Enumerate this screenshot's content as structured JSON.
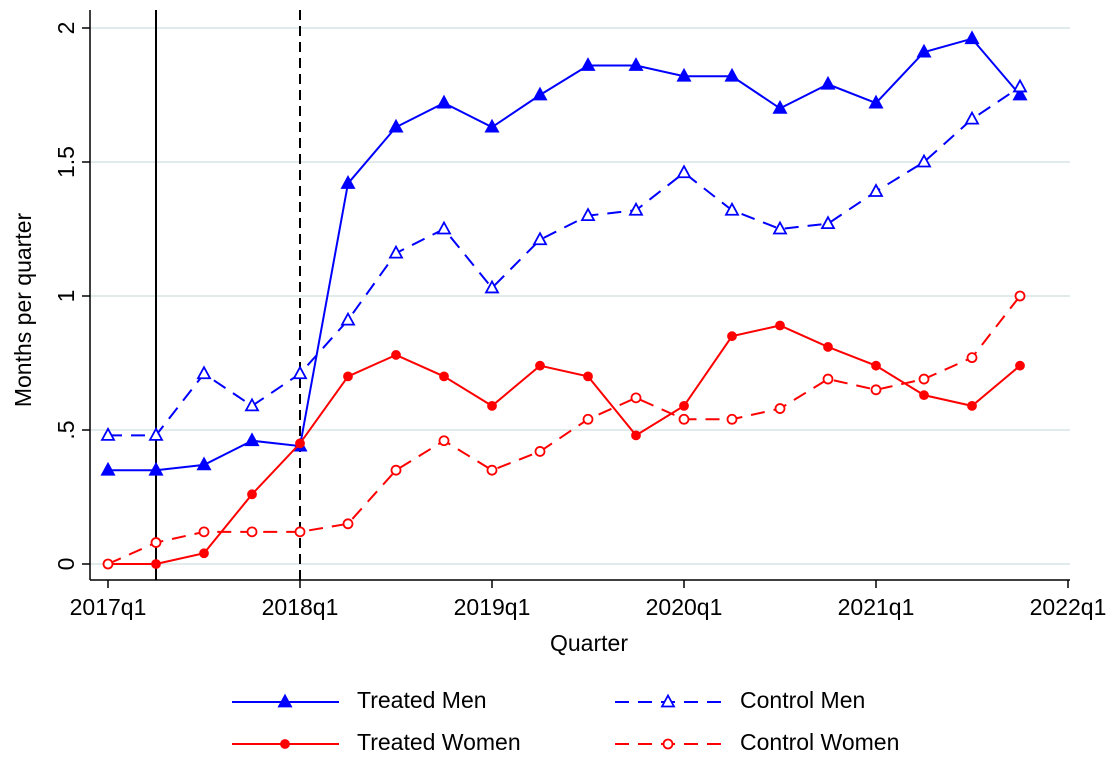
{
  "chart_data": {
    "type": "line",
    "x_label": "Quarter",
    "y_label": "Months per quarter",
    "categories": [
      "2017q1",
      null,
      null,
      null,
      "2018q1",
      null,
      null,
      null,
      "2019q1",
      null,
      null,
      null,
      "2020q1",
      null,
      null,
      null,
      "2021q1",
      null,
      null,
      null,
      "2022q1"
    ],
    "series": [
      {
        "name": "Treated Men",
        "color": "#0000ff",
        "dash": "solid",
        "marker": "triangle",
        "filled": true,
        "values": [
          0.35,
          0.35,
          0.37,
          0.46,
          0.44,
          1.42,
          1.63,
          1.72,
          1.63,
          1.75,
          1.86,
          1.86,
          1.82,
          1.82,
          1.7,
          1.79,
          1.72,
          1.91,
          1.96,
          1.75,
          null
        ]
      },
      {
        "name": "Control Men",
        "color": "#0000ff",
        "dash": "dashed",
        "marker": "triangle",
        "filled": false,
        "values": [
          0.48,
          0.48,
          0.71,
          0.59,
          0.71,
          0.91,
          1.16,
          1.25,
          1.03,
          1.21,
          1.3,
          1.32,
          1.46,
          1.32,
          1.25,
          1.27,
          1.39,
          1.5,
          1.66,
          1.78,
          null
        ]
      },
      {
        "name": "Treated Women",
        "color": "#ff0000",
        "dash": "solid",
        "marker": "circle",
        "filled": true,
        "values": [
          0,
          0,
          0.04,
          0.26,
          0.45,
          0.7,
          0.78,
          0.7,
          0.59,
          0.74,
          0.7,
          0.48,
          0.59,
          0.85,
          0.89,
          0.81,
          0.74,
          0.63,
          0.59,
          0.74,
          null
        ]
      },
      {
        "name": "Control Women",
        "color": "#ff0000",
        "dash": "dashed",
        "marker": "circle",
        "filled": false,
        "values": [
          0,
          0.08,
          0.12,
          0.12,
          0.12,
          0.15,
          0.35,
          0.46,
          0.35,
          0.42,
          0.54,
          0.62,
          0.54,
          0.54,
          0.58,
          0.69,
          0.65,
          0.69,
          0.77,
          1.0,
          null
        ]
      }
    ],
    "reference_lines": [
      {
        "category_index": 1,
        "dash": "solid"
      },
      {
        "category_index": 4,
        "dash": "dashed"
      }
    ],
    "ylim": [
      -0.06,
      2.07
    ],
    "yticks": [
      0,
      {
        "value": 0.5,
        "label": ".5"
      },
      1,
      1.5,
      2
    ],
    "grid": true,
    "legend": "bottom"
  }
}
